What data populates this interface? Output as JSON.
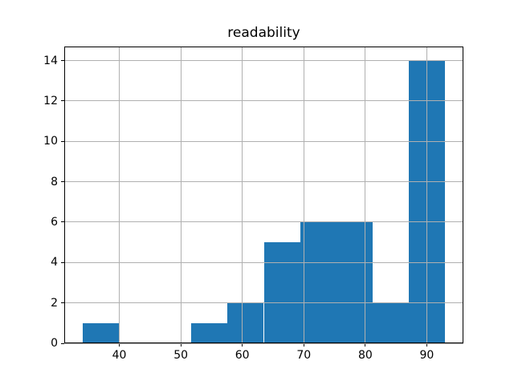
{
  "chart_data": {
    "type": "bar",
    "subtype": "histogram",
    "title": "readability",
    "xlabel": "",
    "ylabel": "",
    "bin_edges": [
      34.0,
      39.9,
      45.8,
      51.7,
      57.6,
      63.5,
      69.4,
      75.3,
      81.2,
      87.1,
      93.0
    ],
    "counts": [
      1,
      0,
      0,
      1,
      2,
      5,
      6,
      6,
      2,
      14
    ],
    "x_ticks": [
      40,
      50,
      60,
      70,
      80,
      90
    ],
    "y_ticks": [
      0,
      2,
      4,
      6,
      8,
      10,
      12,
      14
    ],
    "xlim": [
      31.05,
      95.95
    ],
    "ylim": [
      0,
      14.7
    ],
    "grid": true,
    "legend": false,
    "bar_color": "#1f77b4",
    "grid_color": "#b0b0b0",
    "spine_color": "#000000",
    "text_color": "#000000",
    "background_color": "#ffffff"
  }
}
